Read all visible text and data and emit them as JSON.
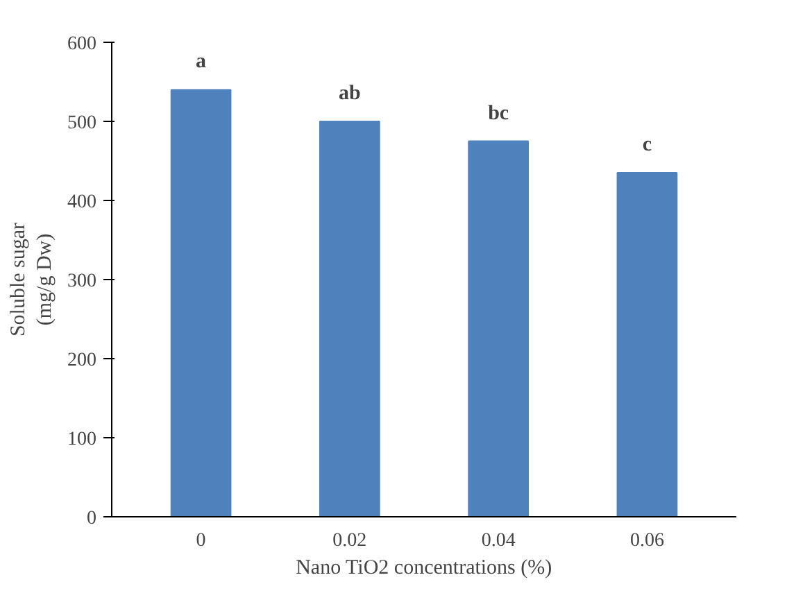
{
  "chart_data": {
    "type": "bar",
    "xlabel": "Nano TiO2 concentrations (%)",
    "ylabel": "Soluble sugar\n(mg/g Dw)",
    "categories": [
      "0",
      "0.02",
      "0.04",
      "0.06"
    ],
    "values": [
      540,
      500,
      475,
      435
    ],
    "color": "#4f81bd",
    "ylim": [
      0,
      600
    ],
    "yticks": [
      0,
      100,
      200,
      300,
      400,
      500,
      600
    ],
    "grid": false,
    "annotations": [
      {
        "text": "a",
        "x": "0",
        "y": 540
      },
      {
        "text": "ab",
        "x": "0.02",
        "y": 500
      },
      {
        "text": "bc",
        "x": "0.04",
        "y": 475
      },
      {
        "text": "c",
        "x": "0.06",
        "y": 435
      }
    ]
  }
}
